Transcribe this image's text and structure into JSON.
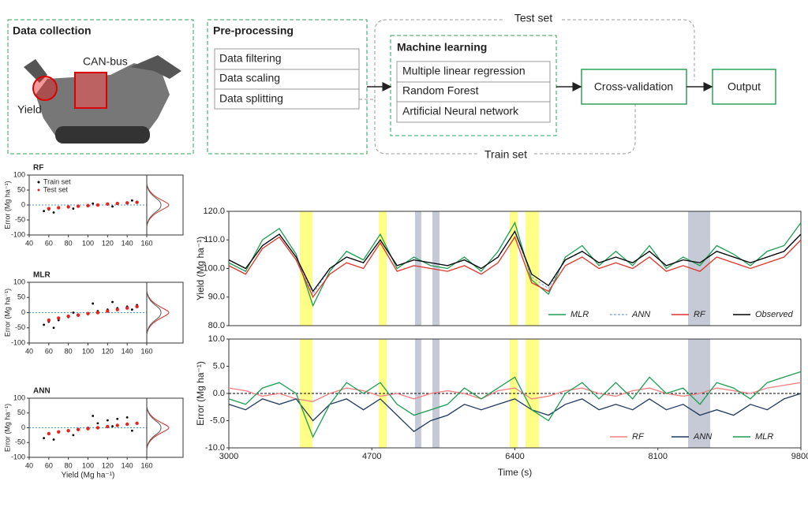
{
  "diagram": {
    "data_collection": {
      "title": "Data collection",
      "can_bus": "CAN-bus",
      "yield": "Yield"
    },
    "preprocessing": {
      "title": "Pre-processing",
      "items": [
        "Data filtering",
        "Data scaling",
        "Data splitting"
      ]
    },
    "machine_learning": {
      "title": "Machine learning",
      "items": [
        "Multiple linear regression",
        "Random Forest",
        "Artificial Neural network"
      ]
    },
    "cross_validation": "Cross-validation",
    "output": "Output",
    "test_set": "Test set",
    "train_set": "Train set"
  },
  "chart_data": [
    {
      "type": "scatter",
      "title": "RF",
      "ylabel": "Error (Mg ha⁻¹)",
      "legend": true,
      "xlim": [
        40,
        160
      ],
      "xticks": [
        40,
        60,
        80,
        100,
        120,
        140,
        160
      ],
      "ylim": [
        -100,
        100
      ],
      "yticks": [
        -100,
        -50,
        0,
        50,
        100
      ],
      "series": [
        {
          "name": "Train set",
          "color": "#000000",
          "x": [
            55,
            60,
            70,
            80,
            90,
            100,
            110,
            120,
            130,
            140,
            150,
            65,
            85,
            105,
            125,
            145
          ],
          "values": [
            -20,
            -15,
            -10,
            -8,
            -5,
            -2,
            0,
            3,
            5,
            8,
            10,
            -25,
            -12,
            5,
            -5,
            15
          ]
        },
        {
          "name": "Test set",
          "color": "#e8231e",
          "x": [
            60,
            70,
            80,
            90,
            100,
            110,
            120,
            130,
            140,
            150
          ],
          "values": [
            -12,
            -9,
            -6,
            -4,
            -2,
            0,
            3,
            5,
            7,
            9
          ]
        }
      ]
    },
    {
      "type": "scatter",
      "title": "MLR",
      "ylabel": "Error (Mg ha⁻¹)",
      "legend": false,
      "xlim": [
        40,
        160
      ],
      "xticks": [
        40,
        60,
        80,
        100,
        120,
        140,
        160
      ],
      "ylim": [
        -100,
        100
      ],
      "yticks": [
        -100,
        -50,
        0,
        50,
        100
      ],
      "series": [
        {
          "color": "#000000",
          "x": [
            55,
            60,
            70,
            80,
            90,
            100,
            110,
            120,
            130,
            140,
            150,
            65,
            85,
            105,
            125,
            145
          ],
          "values": [
            -40,
            -30,
            -25,
            -15,
            -10,
            -5,
            5,
            10,
            15,
            20,
            25,
            -50,
            0,
            30,
            35,
            10
          ]
        },
        {
          "color": "#e8231e",
          "x": [
            60,
            70,
            80,
            90,
            100,
            110,
            120,
            130,
            140,
            150
          ],
          "values": [
            -25,
            -18,
            -12,
            -8,
            -3,
            0,
            5,
            10,
            15,
            20
          ]
        }
      ]
    },
    {
      "type": "scatter",
      "title": "ANN",
      "ylabel": "Error (Mg ha⁻¹)",
      "xlabel": "Yield (Mg ha⁻¹)",
      "legend": false,
      "xlim": [
        40,
        160
      ],
      "xticks": [
        40,
        60,
        80,
        100,
        120,
        140,
        160
      ],
      "ylim": [
        -100,
        100
      ],
      "yticks": [
        -100,
        -50,
        0,
        50,
        100
      ],
      "series": [
        {
          "color": "#000000",
          "x": [
            55,
            60,
            70,
            80,
            90,
            100,
            110,
            120,
            130,
            140,
            150,
            65,
            85,
            105,
            125,
            145
          ],
          "values": [
            -35,
            -20,
            -15,
            -10,
            -5,
            0,
            15,
            25,
            30,
            35,
            15,
            -40,
            -25,
            40,
            5,
            -10
          ]
        },
        {
          "color": "#e8231e",
          "x": [
            60,
            70,
            80,
            90,
            100,
            110,
            120,
            130,
            140,
            150
          ],
          "values": [
            -20,
            -14,
            -10,
            -6,
            -3,
            0,
            4,
            8,
            12,
            15
          ]
        }
      ]
    },
    {
      "type": "line",
      "ylabel": "Yield (Mg ha⁻¹)",
      "legend": "lower right",
      "xlim": [
        3000,
        9800
      ],
      "ylim": [
        80,
        120
      ],
      "yticks": [
        {
          "value": 80,
          "label": "80.0"
        },
        {
          "value": 90,
          "label": "90.0"
        },
        {
          "value": 100,
          "label": "100.0"
        },
        {
          "value": 110,
          "label": "110.0"
        },
        {
          "value": 120,
          "label": "120.0"
        }
      ],
      "highlights": [
        {
          "start": 3844,
          "end": 3994,
          "color": "#ffff88"
        },
        {
          "start": 4782,
          "end": 4876,
          "color": "#ffff88"
        },
        {
          "start": 5213,
          "end": 5288,
          "color": "#c5cad6"
        },
        {
          "start": 5420,
          "end": 5504,
          "color": "#c5cad6"
        },
        {
          "start": 6339,
          "end": 6433,
          "color": "#ffff88"
        },
        {
          "start": 6527,
          "end": 6687,
          "color": "#ffff88"
        },
        {
          "start": 8459,
          "end": 8722,
          "color": "#c5cad6"
        }
      ],
      "x": [
        3000,
        3200,
        3400,
        3600,
        3800,
        4000,
        4200,
        4400,
        4600,
        4800,
        5000,
        5200,
        5400,
        5600,
        5800,
        6000,
        6200,
        6400,
        6600,
        6800,
        7000,
        7200,
        7400,
        7600,
        7800,
        8000,
        8200,
        8400,
        8600,
        8800,
        9000,
        9200,
        9400,
        9600,
        9800
      ],
      "series": [
        {
          "name": "MLR",
          "color": "#1a9e50",
          "values": [
            102,
            99,
            110,
            114,
            105,
            87,
            99,
            106,
            103,
            112,
            100,
            104,
            101,
            100,
            104,
            99,
            106,
            116,
            96,
            91,
            104,
            108,
            101,
            106,
            101,
            108,
            100,
            104,
            101,
            108,
            105,
            101,
            106,
            108,
            116
          ]
        },
        {
          "name": "ANN",
          "color": "#8ab4d8",
          "dashed": true,
          "values": [
            103,
            100,
            108,
            112,
            104,
            91,
            100,
            104,
            102,
            110,
            101,
            103,
            102,
            101,
            103,
            100,
            104,
            113,
            97,
            93,
            103,
            106,
            102,
            104,
            102,
            106,
            101,
            103,
            102,
            106,
            104,
            102,
            104,
            106,
            112
          ]
        },
        {
          "name": "RF",
          "color": "#e0332a",
          "values": [
            101,
            98,
            107,
            111,
            103,
            90,
            98,
            102,
            100,
            109,
            99,
            101,
            100,
            99,
            101,
            98,
            102,
            111,
            95,
            92,
            101,
            104,
            100,
            102,
            100,
            104,
            99,
            101,
            99,
            104,
            102,
            100,
            102,
            104,
            110
          ]
        },
        {
          "name": "Observed",
          "color": "#000000",
          "values": [
            103,
            100,
            108,
            112,
            104,
            92,
            100,
            104,
            102,
            110,
            101,
            103,
            102,
            101,
            103,
            100,
            104,
            113,
            98,
            94,
            103,
            106,
            102,
            104,
            102,
            106,
            101,
            103,
            102,
            106,
            104,
            102,
            104,
            106,
            112
          ]
        }
      ]
    },
    {
      "type": "line",
      "ylabel": "Error (Mg ha⁻¹)",
      "xlabel": "Time (s)",
      "legend": "lower right",
      "xlim": [
        3000,
        9800
      ],
      "xticks": [
        3000,
        4700,
        6400,
        8100,
        9800
      ],
      "ylim": [
        -10,
        10
      ],
      "yticks": [
        {
          "value": -10,
          "label": "-10.0"
        },
        {
          "value": -5,
          "label": "-5.0"
        },
        {
          "value": 0,
          "label": "0.0"
        },
        {
          "value": 5,
          "label": "5.0"
        },
        {
          "value": 10,
          "label": "10.0"
        }
      ],
      "x": [
        3000,
        3200,
        3400,
        3600,
        3800,
        4000,
        4200,
        4400,
        4600,
        4800,
        5000,
        5200,
        5400,
        5600,
        5800,
        6000,
        6200,
        6400,
        6600,
        6800,
        7000,
        7200,
        7400,
        7600,
        7800,
        8000,
        8200,
        8400,
        8600,
        8800,
        9000,
        9200,
        9400,
        9600,
        9800
      ],
      "series": [
        {
          "name": "RF",
          "color": "#f08080",
          "values": [
            1,
            0.5,
            -0.5,
            0,
            -1,
            -1.5,
            0,
            1,
            0.5,
            -0.5,
            0,
            -1,
            0,
            0.5,
            0,
            -1,
            0.5,
            1,
            -1,
            -0.5,
            0.5,
            1,
            0,
            -0.5,
            0.5,
            1,
            0,
            -0.5,
            0,
            1,
            0.5,
            0,
            1,
            1.5,
            2
          ]
        },
        {
          "name": "ANN",
          "color": "#1f3a5f",
          "values": [
            -2,
            -3,
            -1,
            -2,
            -1,
            -5,
            -2,
            -1,
            -3,
            -1,
            -4,
            -7,
            -5,
            -4,
            -2,
            -3,
            -2,
            -1,
            -3,
            -4,
            -2,
            -1,
            -3,
            -2,
            -3,
            -1,
            -3,
            -2,
            -4,
            -3,
            -4,
            -2,
            -3,
            -1,
            0
          ]
        },
        {
          "name": "MLR",
          "color": "#1a9e50",
          "values": [
            -1,
            -2,
            1,
            2,
            0,
            -8,
            -2,
            2,
            0,
            2,
            -2,
            -4,
            -3,
            -2,
            1,
            -1,
            1,
            3,
            -3,
            -5,
            0,
            2,
            -1,
            2,
            -1,
            3,
            0,
            1,
            -2,
            2,
            1,
            -1,
            2,
            3,
            4
          ]
        }
      ]
    }
  ]
}
